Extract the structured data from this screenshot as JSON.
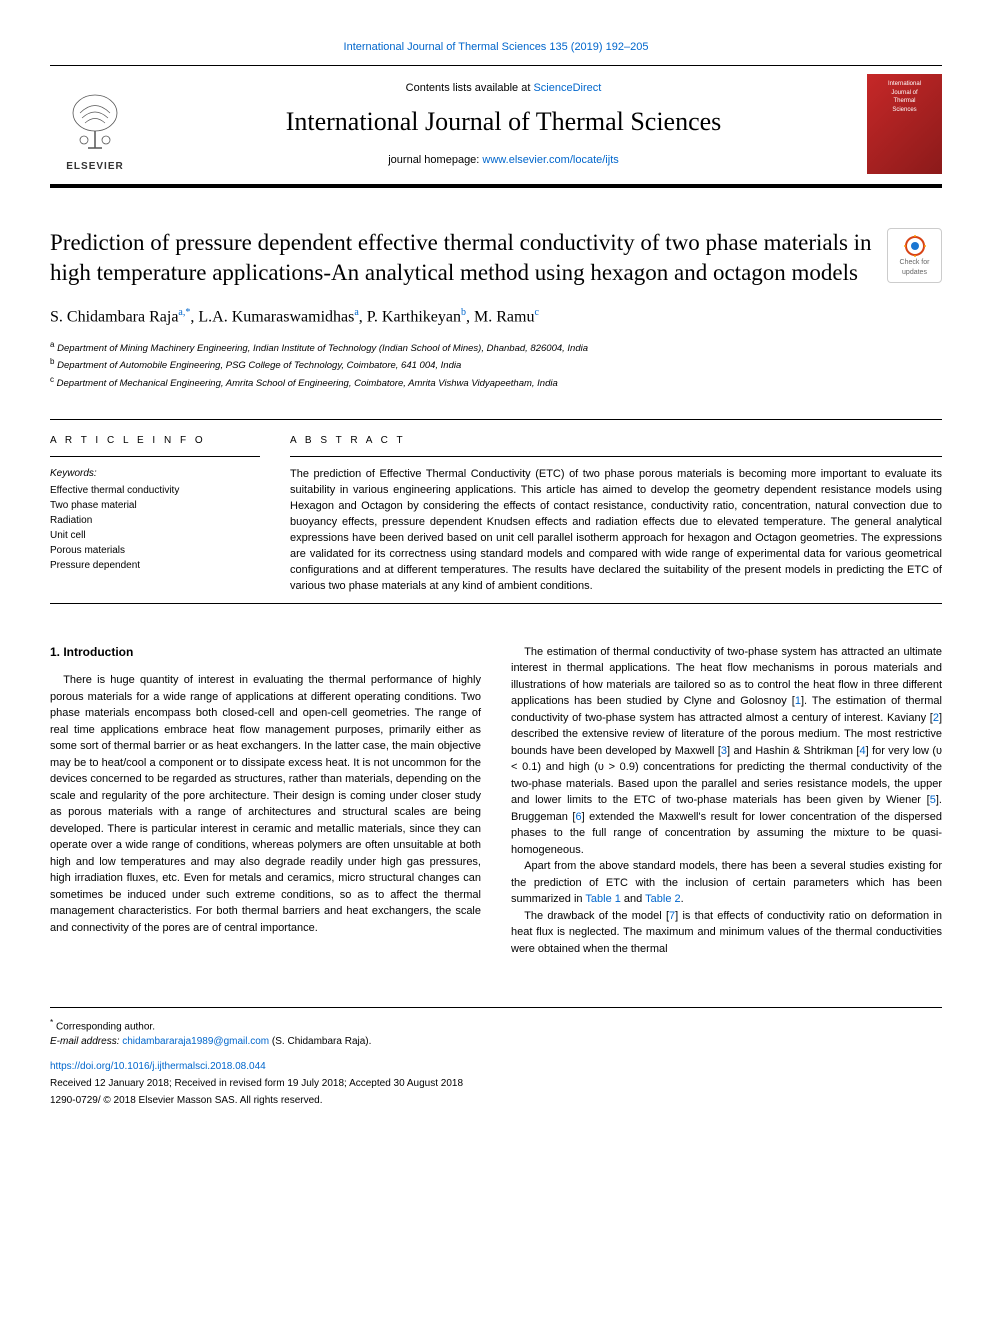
{
  "top_citation": "International Journal of Thermal Sciences 135 (2019) 192–205",
  "masthead": {
    "contents_prefix": "Contents lists available at ",
    "contents_link": "ScienceDirect",
    "journal_title": "International Journal of Thermal Sciences",
    "homepage_prefix": "journal homepage: ",
    "homepage_link": "www.elsevier.com/locate/ijts",
    "elsevier_label": "ELSEVIER",
    "cover_text_1": "International",
    "cover_text_2": "Journal of",
    "cover_text_3": "Thermal",
    "cover_text_4": "Sciences"
  },
  "check_updates_label": "Check for updates",
  "article": {
    "title": "Prediction of pressure dependent effective thermal conductivity of two phase materials in high temperature applications-An analytical method using hexagon and octagon models",
    "authors_html_parts": {
      "a1_name": "S. Chidambara Raja",
      "a1_sup": "a,*",
      "a2_name": "L.A. Kumaraswamidhas",
      "a2_sup": "a",
      "a3_name": "P. Karthikeyan",
      "a3_sup": "b",
      "a4_name": "M. Ramu",
      "a4_sup": "c"
    },
    "affiliations": {
      "a": "Department of Mining Machinery Engineering, Indian Institute of Technology (Indian School of Mines), Dhanbad, 826004, India",
      "b": "Department of Automobile Engineering, PSG College of Technology, Coimbatore, 641 004, India",
      "c": "Department of Mechanical Engineering, Amrita School of Engineering, Coimbatore, Amrita Vishwa Vidyapeetham, India"
    }
  },
  "info": {
    "label": "A R T I C L E  I N F O",
    "keywords_label": "Keywords:",
    "keywords": [
      "Effective thermal conductivity",
      "Two phase material",
      "Radiation",
      "Unit cell",
      "Porous materials",
      "Pressure dependent"
    ]
  },
  "abstract": {
    "label": "A B S T R A C T",
    "text": "The prediction of Effective Thermal Conductivity (ETC) of two phase porous materials is becoming more important to evaluate its suitability in various engineering applications. This article has aimed to develop the geometry dependent resistance models using Hexagon and Octagon by considering the effects of contact resistance, conductivity ratio, concentration, natural convection due to buoyancy effects, pressure dependent Knudsen effects and radiation effects due to elevated temperature. The general analytical expressions have been derived based on unit cell parallel isotherm approach for hexagon and Octagon geometries. The expressions are validated for its correctness using standard models and compared with wide range of experimental data for various geometrical configurations and at different temperatures. The results have declared the suitability of the present models in predicting the ETC of various two phase materials at any kind of ambient conditions."
  },
  "body": {
    "intro_heading": "1. Introduction",
    "left_paras": [
      "There is huge quantity of interest in evaluating the thermal performance of highly porous materials for a wide range of applications at different operating conditions. Two phase materials encompass both closed-cell and open-cell geometries. The range of real time applications embrace heat flow management purposes, primarily either as some sort of thermal barrier or as heat exchangers. In the latter case, the main objective may be to heat/cool a component or to dissipate excess heat. It is not uncommon for the devices concerned to be regarded as structures, rather than materials, depending on the scale and regularity of the pore architecture. Their design is coming under closer study as porous materials with a range of architectures and structural scales are being developed. There is particular interest in ceramic and metallic materials, since they can operate over a wide range of conditions, whereas polymers are often unsuitable at both high and low temperatures and may also degrade readily under high gas pressures, high irradiation fluxes, etc. Even for metals and ceramics, micro structural changes can sometimes be induced under such extreme conditions, so as to affect the thermal management characteristics. For both thermal barriers and heat exchangers, the scale and connectivity of the pores are of central importance."
    ],
    "right_paras": [
      "The estimation of thermal conductivity of two-phase system has attracted an ultimate interest in thermal applications. The heat flow mechanisms in porous materials and illustrations of how materials are tailored so as to control the heat flow in three different applications has been studied by Clyne and Golosnoy [1]. The estimation of thermal conductivity of two-phase system has attracted almost a century of interest. Kaviany [2] described the extensive review of literature of the porous medium. The most restrictive bounds have been developed by Maxwell [3] and Hashin & Shtrikman [4] for very low (υ < 0.1) and high (υ > 0.9) concentrations for predicting the thermal conductivity of the two-phase materials. Based upon the parallel and series resistance models, the upper and lower limits to the ETC of two-phase materials has been given by Wiener [5]. Bruggeman [6] extended the Maxwell's result for lower concentration of the dispersed phases to the full range of concentration by assuming the mixture to be quasi-homogeneous.",
      "Apart from the above standard models, there has been a several studies existing for the prediction of ETC with the inclusion of certain parameters which has been summarized in Table 1 and Table 2.",
      "The drawback of the model [7] is that effects of conductivity ratio on deformation in heat flux is neglected. The maximum and minimum values of the thermal conductivities were obtained when the thermal"
    ],
    "citation_refs": [
      "1",
      "2",
      "3",
      "4",
      "5",
      "6",
      "7"
    ],
    "table_refs": [
      "Table 1",
      "Table 2"
    ]
  },
  "footnotes": {
    "corresponding": "Corresponding author.",
    "email_label": "E-mail address:",
    "email": "chidambararaja1989@gmail.com",
    "email_attribution": "(S. Chidambara Raja).",
    "doi": "https://doi.org/10.1016/j.ijthermalsci.2018.08.044",
    "received": "Received 12 January 2018; Received in revised form 19 July 2018; Accepted 30 August 2018",
    "copyright": "1290-0729/ © 2018 Elsevier Masson SAS. All rights reserved."
  },
  "colors": {
    "link": "#0066cc",
    "cover_bg_start": "#c62828",
    "cover_bg_end": "#8b1a1a",
    "text": "#000000",
    "background": "#ffffff"
  },
  "typography": {
    "body_fontsize": 12,
    "article_title_fontsize": 23,
    "journal_title_fontsize": 26,
    "authors_fontsize": 16,
    "abstract_fontsize": 11,
    "small_fontsize": 10
  }
}
